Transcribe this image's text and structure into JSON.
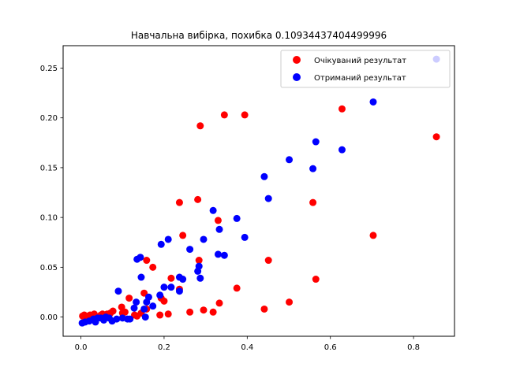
{
  "chart_data": {
    "type": "scatter",
    "title": "Навчальна вибірка, похибка 0.10934437404499996",
    "xlabel": "",
    "ylabel": "",
    "xlim": [
      -0.0428,
      0.8985
    ],
    "ylim": [
      -0.0193,
      0.2725
    ],
    "xticks": [
      0.0,
      0.2,
      0.4,
      0.6,
      0.8
    ],
    "xtick_labels": [
      "0.0",
      "0.2",
      "0.4",
      "0.6",
      "0.8"
    ],
    "yticks": [
      0.0,
      0.05,
      0.1,
      0.15,
      0.2,
      0.25
    ],
    "ytick_labels": [
      "0.00",
      "0.05",
      "0.10",
      "0.15",
      "0.20",
      "0.25"
    ],
    "grid": false,
    "legend_position": "top-right",
    "series": [
      {
        "name": "Очікуваний результат",
        "color": "#ff0000",
        "points": [
          [
            0.855,
            0.181
          ],
          [
            0.703,
            0.082
          ],
          [
            0.628,
            0.209
          ],
          [
            0.565,
            0.038
          ],
          [
            0.558,
            0.115
          ],
          [
            0.501,
            0.015
          ],
          [
            0.451,
            0.057
          ],
          [
            0.441,
            0.008
          ],
          [
            0.394,
            0.203
          ],
          [
            0.375,
            0.029
          ],
          [
            0.345,
            0.203
          ],
          [
            0.333,
            0.014
          ],
          [
            0.33,
            0.097
          ],
          [
            0.318,
            0.005
          ],
          [
            0.295,
            0.007
          ],
          [
            0.287,
            0.192
          ],
          [
            0.284,
            0.057
          ],
          [
            0.281,
            0.118
          ],
          [
            0.262,
            0.005
          ],
          [
            0.245,
            0.082
          ],
          [
            0.237,
            0.115
          ],
          [
            0.237,
            0.028
          ],
          [
            0.217,
            0.039
          ],
          [
            0.21,
            0.003
          ],
          [
            0.2,
            0.016
          ],
          [
            0.193,
            0.019
          ],
          [
            0.19,
            0.002
          ],
          [
            0.173,
            0.05
          ],
          [
            0.158,
            0.057
          ],
          [
            0.158,
            0.008
          ],
          [
            0.152,
            0.024
          ],
          [
            0.145,
            0.004
          ],
          [
            0.135,
            0.001
          ],
          [
            0.129,
            0.002
          ],
          [
            0.116,
            0.019
          ],
          [
            0.106,
            0.005
          ],
          [
            0.1,
            0.004
          ],
          [
            0.098,
            0.01
          ],
          [
            0.077,
            0.006
          ],
          [
            0.071,
            0.004
          ],
          [
            0.063,
            0.003
          ],
          [
            0.052,
            0.003
          ],
          [
            0.048,
            0.002
          ],
          [
            0.032,
            0.003
          ],
          [
            0.022,
            0.002
          ],
          [
            0.013,
            0.001
          ],
          [
            0.008,
            0.002
          ],
          [
            0.004,
            0.001
          ]
        ]
      },
      {
        "name": "Отриманий результат",
        "color": "#0000ff",
        "points": [
          [
            0.855,
            0.259
          ],
          [
            0.703,
            0.216
          ],
          [
            0.628,
            0.168
          ],
          [
            0.565,
            0.176
          ],
          [
            0.558,
            0.149
          ],
          [
            0.501,
            0.158
          ],
          [
            0.451,
            0.119
          ],
          [
            0.441,
            0.141
          ],
          [
            0.394,
            0.08
          ],
          [
            0.375,
            0.099
          ],
          [
            0.345,
            0.062
          ],
          [
            0.333,
            0.088
          ],
          [
            0.33,
            0.063
          ],
          [
            0.318,
            0.107
          ],
          [
            0.295,
            0.078
          ],
          [
            0.287,
            0.039
          ],
          [
            0.284,
            0.051
          ],
          [
            0.281,
            0.046
          ],
          [
            0.262,
            0.068
          ],
          [
            0.245,
            0.038
          ],
          [
            0.237,
            0.04
          ],
          [
            0.237,
            0.026
          ],
          [
            0.217,
            0.03
          ],
          [
            0.21,
            0.078
          ],
          [
            0.2,
            0.03
          ],
          [
            0.193,
            0.073
          ],
          [
            0.19,
            0.022
          ],
          [
            0.173,
            0.011
          ],
          [
            0.163,
            0.02
          ],
          [
            0.158,
            0.015
          ],
          [
            0.155,
            0.0
          ],
          [
            0.152,
            0.008
          ],
          [
            0.145,
            0.04
          ],
          [
            0.143,
            0.06
          ],
          [
            0.135,
            0.058
          ],
          [
            0.133,
            0.015
          ],
          [
            0.128,
            0.009
          ],
          [
            0.118,
            -0.002
          ],
          [
            0.112,
            -0.002
          ],
          [
            0.1,
            -0.001
          ],
          [
            0.09,
            0.026
          ],
          [
            0.086,
            -0.002
          ],
          [
            0.075,
            -0.004
          ],
          [
            0.068,
            -0.001
          ],
          [
            0.055,
            -0.003
          ],
          [
            0.048,
            -0.001
          ],
          [
            0.035,
            -0.005
          ],
          [
            0.03,
            -0.002
          ],
          [
            0.02,
            -0.004
          ],
          [
            0.01,
            -0.005
          ],
          [
            0.003,
            -0.006
          ],
          [
            0.06,
            0.0
          ],
          [
            0.04,
            -0.001
          ]
        ]
      }
    ]
  }
}
